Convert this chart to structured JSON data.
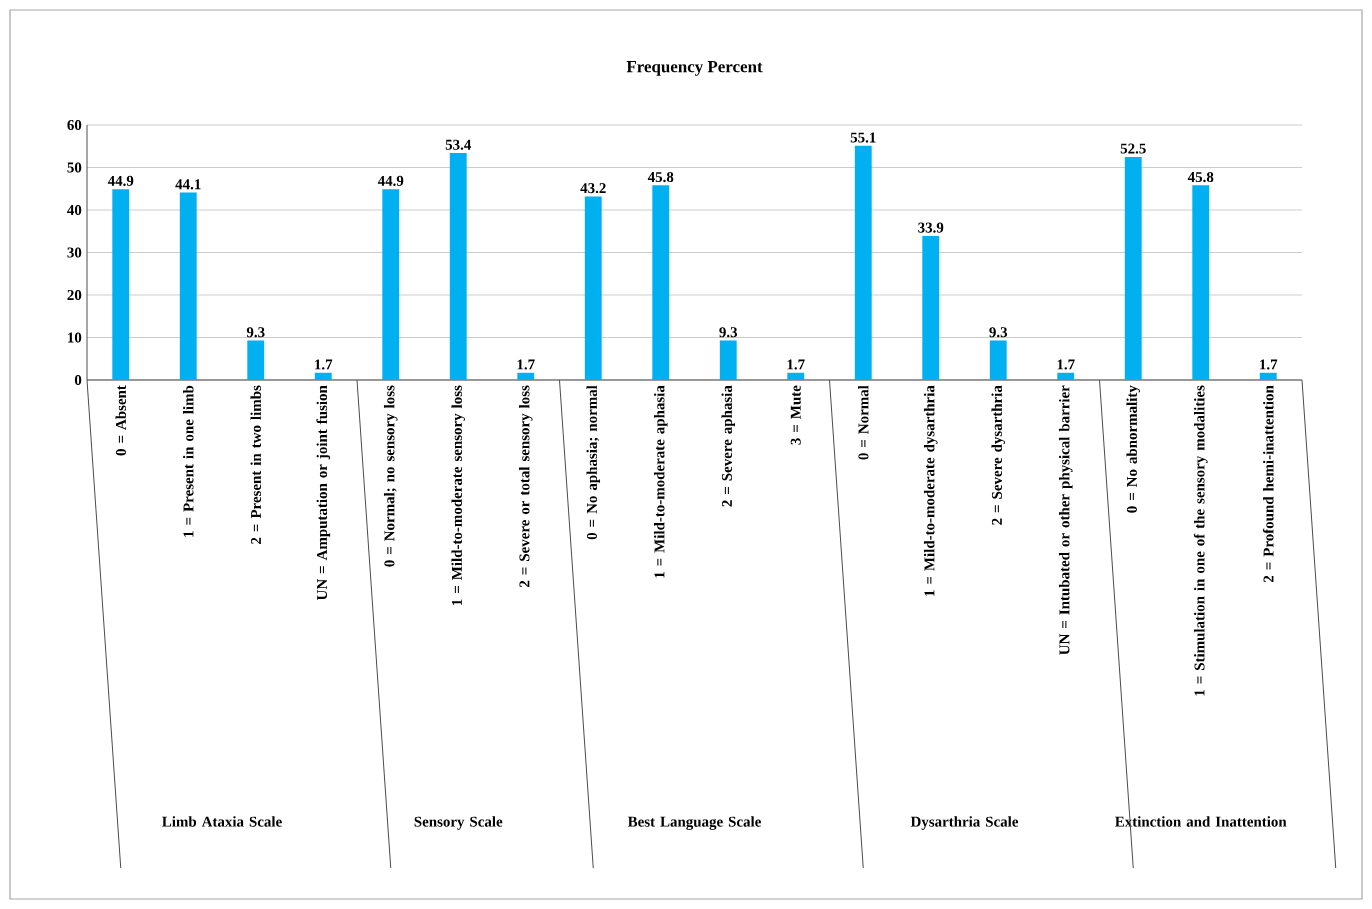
{
  "chart_data": {
    "type": "bar",
    "title": "Frequency Percent",
    "categories": [
      "0 = Absent",
      "1 = Present in one limb",
      "2 = Present in two limbs",
      "UN = Amputation or joint fusion",
      "0 = Normal; no sensory loss",
      "1 = Mild-to-moderate sensory loss",
      "2 = Severe or total sensory loss",
      "0 = No aphasia; normal",
      "1 = Mild-to-moderate aphasia",
      "2 = Severe aphasia",
      "3 = Mute",
      "0 = Normal",
      "1 = Mild-to-moderate dysarthria",
      "2 = Severe dysarthria",
      "UN = Intubated or other physical barrier",
      "0 = No abnormality",
      "1 = Stimulation in one of the sensory modalities",
      "2 = Profound hemi-inattention"
    ],
    "values": [
      44.9,
      44.1,
      9.3,
      1.7,
      44.9,
      53.4,
      1.7,
      43.2,
      45.8,
      9.3,
      1.7,
      55.1,
      33.9,
      9.3,
      1.7,
      52.5,
      45.8,
      1.7
    ],
    "color": "#00b0f0",
    "ylim": [
      0,
      60
    ],
    "yticks": [
      0,
      10,
      20,
      30,
      40,
      50,
      60
    ],
    "grid": "y",
    "data_labels": true,
    "annotations": [
      "Limb Ataxia Scale",
      "Sensory Scale",
      "Best Language Scale",
      "Dysarthria Scale",
      "Extinction and Inattention"
    ]
  }
}
